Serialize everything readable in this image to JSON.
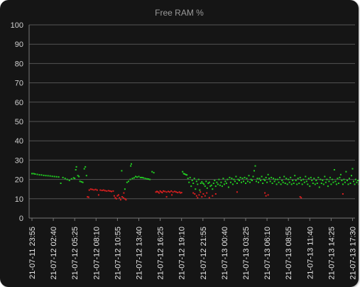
{
  "chart_data": {
    "type": "scatter",
    "title": "Free RAM %",
    "xlabel": "",
    "ylabel": "",
    "ylim": [
      0,
      100
    ],
    "yticks": [
      0,
      10,
      20,
      30,
      40,
      50,
      60,
      70,
      80,
      90,
      100
    ],
    "grid": true,
    "categories": [
      "21-07-11 23:55",
      "21-07-12 02:40",
      "21-07-12 05:25",
      "21-07-12 08:10",
      "21-07-12 10:55",
      "21-07-12 13:40",
      "21-07-12 16:25",
      "21-07-12 19:10",
      "21-07-12 21:55",
      "21-07-13 00:40",
      "21-07-13 03:25",
      "21-07-13 06:10",
      "21-07-13 08:55",
      "21-07-13 11:40",
      "21-07-13 14:25",
      "21-07-13 17:30"
    ],
    "series": [
      {
        "color": "#22cc22",
        "points": [
          [
            0.0,
            23.0
          ],
          [
            0.08,
            23.0
          ],
          [
            0.15,
            22.8
          ],
          [
            0.25,
            22.6
          ],
          [
            0.35,
            22.4
          ],
          [
            0.45,
            22.3
          ],
          [
            0.55,
            22.1
          ],
          [
            0.65,
            22.0
          ],
          [
            0.75,
            21.9
          ],
          [
            0.85,
            21.8
          ],
          [
            0.95,
            21.6
          ],
          [
            1.05,
            21.5
          ],
          [
            1.15,
            21.4
          ],
          [
            1.25,
            21.3
          ],
          [
            1.35,
            18.0
          ],
          [
            1.45,
            21.0
          ],
          [
            1.55,
            20.5
          ],
          [
            1.65,
            20.0
          ],
          [
            1.75,
            19.5
          ],
          [
            1.85,
            20.3
          ],
          [
            1.95,
            20.8
          ],
          [
            2.0,
            20.5
          ],
          [
            2.05,
            25.0
          ],
          [
            2.08,
            26.5
          ],
          [
            2.15,
            22.0
          ],
          [
            2.2,
            21.5
          ],
          [
            2.25,
            19.0
          ],
          [
            2.32,
            18.8
          ],
          [
            2.38,
            18.5
          ],
          [
            2.45,
            25.5
          ],
          [
            2.5,
            26.5
          ],
          [
            2.55,
            22.0
          ],
          [
            4.2,
            24.5
          ],
          [
            4.35,
            15.0
          ],
          [
            4.45,
            18.5
          ],
          [
            4.52,
            19.0
          ],
          [
            4.6,
            20.0
          ],
          [
            4.62,
            27.0
          ],
          [
            4.65,
            28.0
          ],
          [
            4.7,
            20.5
          ],
          [
            4.78,
            20.8
          ],
          [
            4.85,
            21.5
          ],
          [
            4.92,
            21.2
          ],
          [
            5.0,
            21.5
          ],
          [
            5.08,
            21.0
          ],
          [
            5.15,
            21.0
          ],
          [
            5.22,
            20.8
          ],
          [
            5.3,
            20.5
          ],
          [
            5.38,
            20.3
          ],
          [
            5.45,
            20.2
          ],
          [
            5.52,
            20.0
          ],
          [
            5.62,
            24.0
          ],
          [
            5.7,
            23.5
          ],
          [
            7.05,
            24.0
          ],
          [
            7.1,
            23.0
          ],
          [
            7.15,
            22.8
          ],
          [
            7.2,
            22.5
          ],
          [
            7.25,
            22.3
          ],
          [
            7.3,
            20.5
          ],
          [
            7.35,
            18.5
          ],
          [
            7.4,
            21.0
          ],
          [
            7.45,
            16.5
          ],
          [
            7.5,
            19.5
          ],
          [
            7.55,
            18.0
          ],
          [
            7.6,
            20.5
          ],
          [
            7.65,
            15.0
          ],
          [
            7.7,
            19.0
          ],
          [
            7.75,
            17.5
          ],
          [
            7.8,
            20.0
          ],
          [
            7.85,
            14.5
          ],
          [
            7.9,
            18.0
          ],
          [
            7.95,
            18.8
          ],
          [
            8.0,
            18.0
          ],
          [
            8.05,
            17.5
          ],
          [
            8.1,
            16.5
          ],
          [
            8.15,
            19.0
          ],
          [
            8.2,
            15.5
          ],
          [
            8.25,
            18.0
          ],
          [
            8.3,
            18.5
          ],
          [
            8.35,
            16.5
          ],
          [
            8.4,
            17.0
          ],
          [
            8.45,
            15.0
          ],
          [
            8.5,
            18.0
          ],
          [
            8.55,
            19.5
          ],
          [
            8.6,
            16.5
          ],
          [
            8.65,
            18.5
          ],
          [
            8.7,
            17.5
          ],
          [
            8.75,
            20.0
          ],
          [
            8.8,
            17.0
          ],
          [
            8.85,
            18.5
          ],
          [
            8.9,
            16.5
          ],
          [
            8.95,
            20.5
          ],
          [
            9.0,
            17.5
          ],
          [
            9.05,
            19.0
          ],
          [
            9.1,
            18.0
          ],
          [
            9.15,
            20.0
          ],
          [
            9.2,
            16.0
          ],
          [
            9.25,
            21.0
          ],
          [
            9.3,
            18.5
          ],
          [
            9.35,
            20.5
          ],
          [
            9.4,
            17.5
          ],
          [
            9.45,
            20.0
          ],
          [
            9.5,
            19.0
          ],
          [
            9.55,
            21.5
          ],
          [
            9.6,
            18.0
          ],
          [
            9.65,
            20.0
          ],
          [
            9.7,
            19.5
          ],
          [
            9.75,
            21.0
          ],
          [
            9.8,
            18.5
          ],
          [
            9.85,
            20.5
          ],
          [
            9.9,
            19.0
          ],
          [
            9.95,
            21.0
          ],
          [
            10.0,
            18.0
          ],
          [
            10.05,
            20.5
          ],
          [
            10.1,
            19.0
          ],
          [
            10.15,
            22.0
          ],
          [
            10.2,
            18.5
          ],
          [
            10.25,
            20.0
          ],
          [
            10.3,
            19.5
          ],
          [
            10.35,
            21.5
          ],
          [
            10.4,
            24.5
          ],
          [
            10.45,
            27.0
          ],
          [
            10.5,
            19.0
          ],
          [
            10.55,
            20.5
          ],
          [
            10.6,
            18.5
          ],
          [
            10.65,
            20.5
          ],
          [
            10.7,
            19.5
          ],
          [
            10.75,
            21.5
          ],
          [
            10.8,
            18.0
          ],
          [
            10.85,
            20.0
          ],
          [
            10.9,
            19.5
          ],
          [
            10.95,
            21.0
          ],
          [
            11.0,
            18.5
          ],
          [
            11.05,
            22.5
          ],
          [
            11.1,
            20.5
          ],
          [
            11.15,
            19.0
          ],
          [
            11.2,
            21.0
          ],
          [
            11.25,
            18.0
          ],
          [
            11.3,
            20.5
          ],
          [
            11.35,
            19.0
          ],
          [
            11.4,
            20.0
          ],
          [
            11.45,
            17.5
          ],
          [
            11.5,
            20.0
          ],
          [
            11.55,
            18.5
          ],
          [
            11.6,
            21.0
          ],
          [
            11.65,
            17.5
          ],
          [
            11.7,
            19.5
          ],
          [
            11.75,
            18.5
          ],
          [
            11.8,
            21.5
          ],
          [
            11.85,
            18.0
          ],
          [
            11.9,
            20.5
          ],
          [
            11.95,
            17.5
          ],
          [
            12.0,
            20.0
          ],
          [
            12.05,
            18.5
          ],
          [
            12.1,
            21.0
          ],
          [
            12.15,
            17.5
          ],
          [
            12.2,
            19.5
          ],
          [
            12.25,
            18.0
          ],
          [
            12.3,
            22.0
          ],
          [
            12.35,
            19.5
          ],
          [
            12.4,
            17.5
          ],
          [
            12.45,
            20.5
          ],
          [
            12.5,
            18.0
          ],
          [
            12.55,
            21.0
          ],
          [
            12.6,
            19.5
          ],
          [
            12.65,
            17.5
          ],
          [
            12.7,
            20.0
          ],
          [
            12.75,
            18.5
          ],
          [
            12.8,
            21.5
          ],
          [
            12.85,
            19.0
          ],
          [
            12.9,
            17.5
          ],
          [
            12.95,
            20.5
          ],
          [
            13.0,
            16.5
          ],
          [
            13.05,
            21.0
          ],
          [
            13.1,
            19.5
          ],
          [
            13.15,
            18.0
          ],
          [
            13.2,
            20.5
          ],
          [
            13.25,
            17.5
          ],
          [
            13.3,
            19.5
          ],
          [
            13.35,
            18.0
          ],
          [
            13.4,
            21.0
          ],
          [
            13.45,
            16.0
          ],
          [
            13.5,
            20.0
          ],
          [
            13.55,
            18.0
          ],
          [
            13.6,
            19.5
          ],
          [
            13.65,
            17.5
          ],
          [
            13.7,
            21.5
          ],
          [
            13.75,
            18.5
          ],
          [
            13.8,
            20.0
          ],
          [
            13.85,
            16.5
          ],
          [
            13.9,
            19.0
          ],
          [
            13.95,
            21.0
          ],
          [
            14.0,
            17.5
          ],
          [
            14.05,
            20.0
          ],
          [
            14.1,
            18.5
          ],
          [
            14.15,
            25.0
          ],
          [
            14.2,
            19.0
          ],
          [
            14.25,
            17.5
          ],
          [
            14.3,
            20.5
          ],
          [
            14.35,
            18.0
          ],
          [
            14.4,
            21.0
          ],
          [
            14.45,
            22.5
          ],
          [
            14.5,
            19.5
          ],
          [
            14.55,
            17.5
          ],
          [
            14.6,
            20.0
          ],
          [
            14.65,
            18.5
          ],
          [
            14.7,
            24.0
          ],
          [
            14.75,
            19.5
          ],
          [
            14.8,
            17.5
          ],
          [
            14.85,
            20.5
          ],
          [
            14.9,
            18.0
          ],
          [
            14.95,
            22.0
          ],
          [
            15.0,
            25.5
          ],
          [
            15.05,
            19.0
          ],
          [
            15.1,
            17.5
          ],
          [
            15.15,
            20.0
          ],
          [
            15.2,
            18.5
          ],
          [
            15.25,
            19.5
          ],
          [
            15.3,
            17.5
          ],
          [
            15.35,
            20.0
          ],
          [
            15.4,
            18.0
          ],
          [
            15.45,
            19.5
          ],
          [
            15.5,
            17.0
          ],
          [
            15.55,
            19.0
          ],
          [
            15.6,
            18.0
          ]
        ]
      },
      {
        "color": "#dd1f1f",
        "points": [
          [
            2.6,
            11.0
          ],
          [
            2.65,
            10.8
          ],
          [
            2.68,
            14.5
          ],
          [
            2.75,
            15.0
          ],
          [
            2.82,
            14.8
          ],
          [
            2.9,
            14.6
          ],
          [
            2.98,
            14.8
          ],
          [
            3.05,
            14.5
          ],
          [
            3.12,
            12.0
          ],
          [
            3.2,
            14.5
          ],
          [
            3.28,
            14.3
          ],
          [
            3.35,
            14.5
          ],
          [
            3.42,
            14.2
          ],
          [
            3.5,
            14.0
          ],
          [
            3.58,
            14.2
          ],
          [
            3.65,
            14.0
          ],
          [
            3.72,
            13.8
          ],
          [
            3.8,
            14.0
          ],
          [
            3.85,
            11.5
          ],
          [
            3.9,
            10.5
          ],
          [
            3.95,
            10.0
          ],
          [
            4.0,
            11.5
          ],
          [
            4.05,
            12.0
          ],
          [
            4.1,
            10.5
          ],
          [
            4.15,
            9.5
          ],
          [
            4.22,
            11.0
          ],
          [
            4.28,
            10.5
          ],
          [
            4.3,
            13.0
          ],
          [
            4.35,
            10.0
          ],
          [
            4.4,
            9.5
          ],
          [
            5.8,
            13.5
          ],
          [
            5.85,
            13.8
          ],
          [
            5.9,
            13.5
          ],
          [
            5.95,
            13.0
          ],
          [
            6.0,
            14.0
          ],
          [
            6.05,
            13.5
          ],
          [
            6.1,
            13.2
          ],
          [
            6.15,
            14.0
          ],
          [
            6.22,
            13.8
          ],
          [
            6.3,
            13.5
          ],
          [
            6.38,
            13.8
          ],
          [
            6.45,
            13.5
          ],
          [
            6.52,
            14.0
          ],
          [
            6.6,
            13.5
          ],
          [
            6.68,
            13.8
          ],
          [
            6.75,
            13.5
          ],
          [
            6.82,
            13.2
          ],
          [
            6.9,
            13.5
          ],
          [
            6.95,
            13.0
          ],
          [
            7.0,
            13.2
          ],
          [
            6.3,
            11.0
          ],
          [
            6.55,
            12.0
          ],
          [
            7.55,
            13.0
          ],
          [
            7.62,
            12.5
          ],
          [
            7.7,
            11.5
          ],
          [
            7.75,
            10.5
          ],
          [
            7.82,
            12.0
          ],
          [
            7.88,
            13.5
          ],
          [
            7.95,
            11.0
          ],
          [
            8.02,
            12.5
          ],
          [
            8.1,
            11.5
          ],
          [
            8.18,
            13.0
          ],
          [
            8.3,
            10.5
          ],
          [
            8.45,
            11.5
          ],
          [
            8.6,
            12.5
          ],
          [
            9.6,
            13.5
          ],
          [
            10.9,
            13.0
          ],
          [
            10.95,
            11.5
          ],
          [
            11.05,
            12.0
          ],
          [
            12.55,
            11.0
          ],
          [
            12.6,
            10.5
          ],
          [
            14.55,
            12.5
          ]
        ]
      }
    ]
  }
}
